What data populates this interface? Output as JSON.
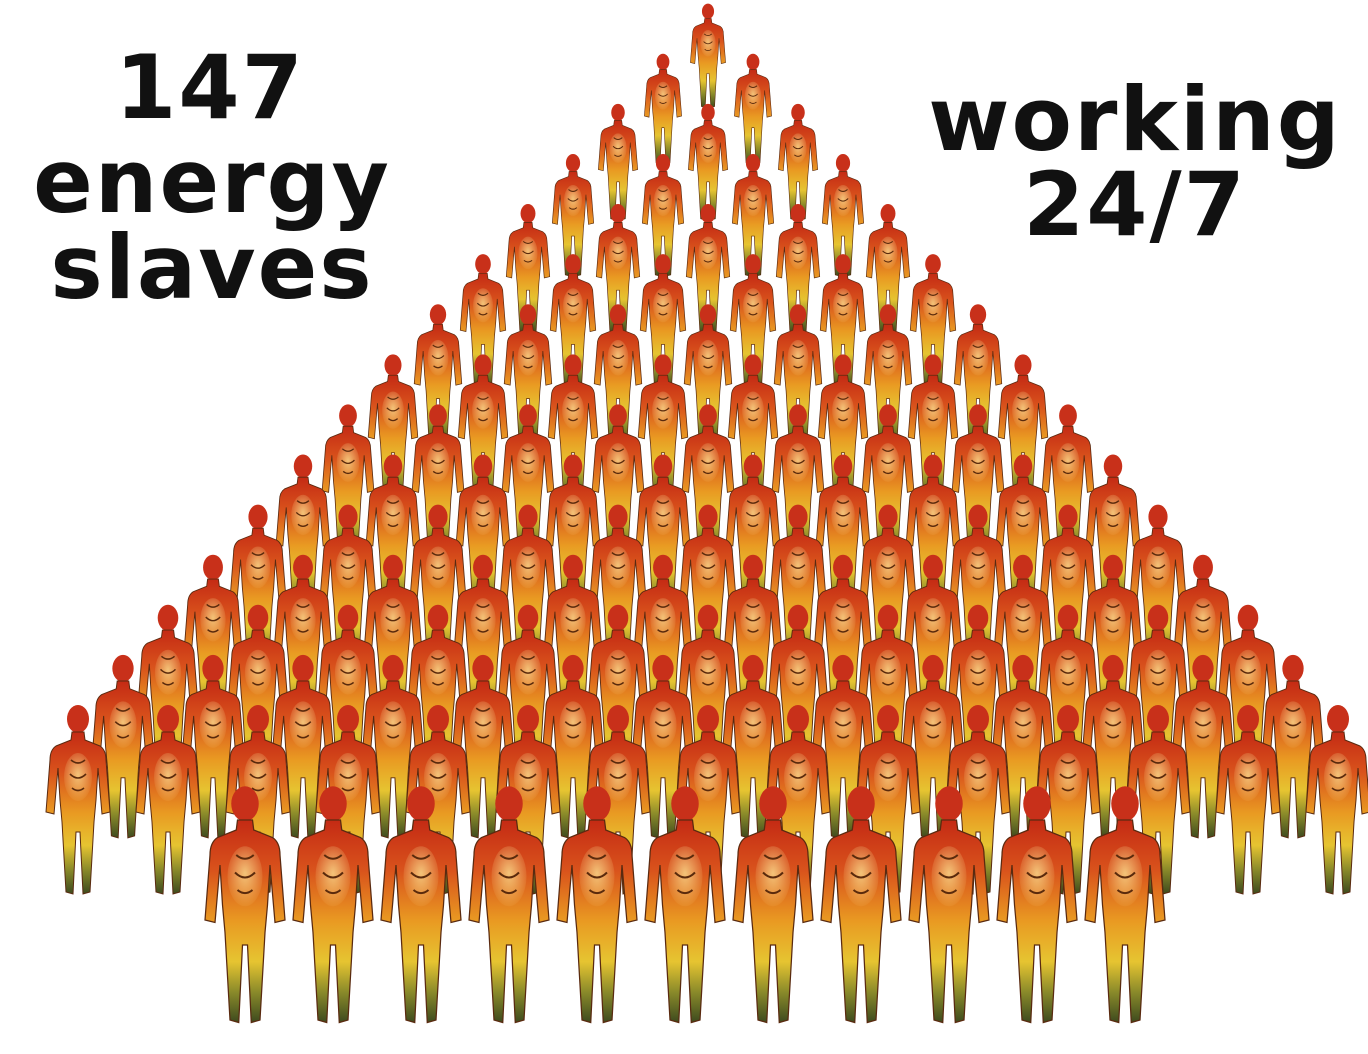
{
  "left_caption": {
    "number": "147",
    "line1": "energy",
    "line2": "slaves"
  },
  "right_caption": {
    "line1": "working",
    "line2": "24/7"
  }
}
